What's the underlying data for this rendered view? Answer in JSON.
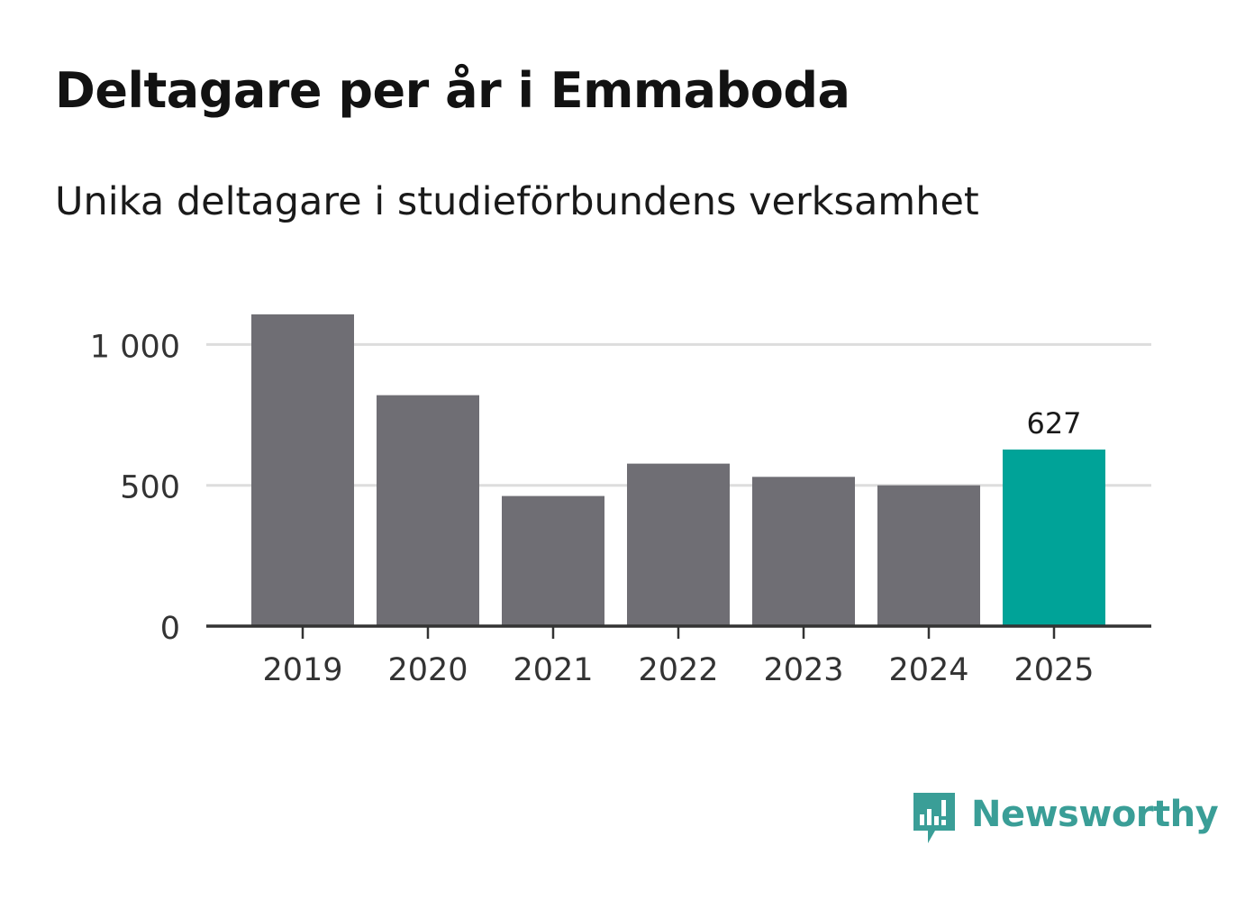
{
  "title": "Deltagare per år i Emmaboda",
  "subtitle": "Unika deltagare i studieförbundens verksamhet",
  "brand": {
    "name": "Newsworthy",
    "color": "#3a9e97",
    "icon": "newsworthy-logo-icon"
  },
  "colors": {
    "bar": "#6f6e74",
    "highlight": "#00a398",
    "grid": "#dddddd",
    "axis": "#333333",
    "text": "#333333"
  },
  "chart_data": {
    "type": "bar",
    "title": "Deltagare per år i Emmaboda",
    "subtitle": "Unika deltagare i studieförbundens verksamhet",
    "categories": [
      "2019",
      "2020",
      "2021",
      "2022",
      "2023",
      "2024",
      "2025"
    ],
    "values": [
      1107,
      820,
      462,
      577,
      530,
      500,
      627
    ],
    "highlight_index": 6,
    "data_labels": [
      {
        "index": 6,
        "text": "627"
      }
    ],
    "yticks": [
      0,
      500,
      1000
    ],
    "ytick_labels": [
      "0",
      "500",
      "1 000"
    ],
    "ylim": [
      0,
      1110
    ],
    "xlabel": "",
    "ylabel": "",
    "grid": true
  }
}
